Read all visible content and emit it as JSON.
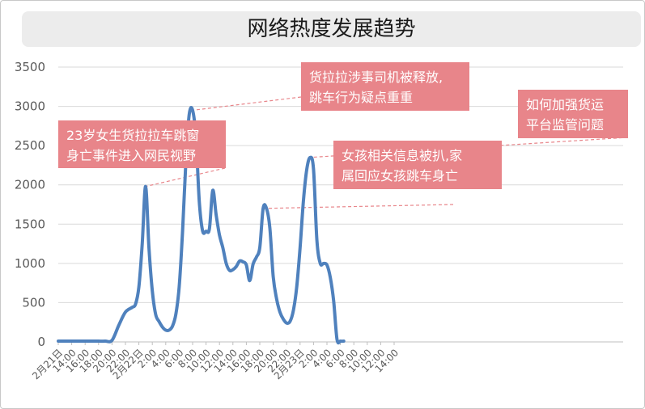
{
  "chart_data": {
    "type": "line",
    "title": "网络热度发展趋势",
    "ylim": [
      0,
      3500
    ],
    "y_ticks": [
      "0",
      "500",
      "1000",
      "1500",
      "2000",
      "2500",
      "3000",
      "3500"
    ],
    "x_ticks": [
      "2月21日",
      "14:00",
      "16:00",
      "18:00",
      "20:00",
      "22:00",
      "2月22日",
      "2:00",
      "4:00",
      "6:00",
      "8:00",
      "10:00",
      "12:00",
      "14:00",
      "16:00",
      "18:00",
      "20:00",
      "22:00",
      "2月23日",
      "2:00",
      "4:00",
      "6:00",
      "8:00",
      "10:00",
      "12:00",
      "14:00"
    ],
    "grid": "horizontal",
    "line_color": "#4f81bd",
    "series": [
      {
        "points": [
          [
            0,
            10
          ],
          [
            1,
            10
          ],
          [
            2,
            10
          ],
          [
            3,
            10
          ],
          [
            4,
            10
          ],
          [
            5,
            10
          ],
          [
            6,
            10
          ],
          [
            7,
            10
          ],
          [
            8,
            20
          ],
          [
            9,
            210
          ],
          [
            10,
            380
          ],
          [
            11,
            440
          ],
          [
            11.5,
            480
          ],
          [
            12,
            700
          ],
          [
            12.5,
            1250
          ],
          [
            13,
            1980
          ],
          [
            13.5,
            1200
          ],
          [
            14,
            650
          ],
          [
            14.5,
            350
          ],
          [
            15,
            260
          ],
          [
            15.5,
            190
          ],
          [
            16,
            150
          ],
          [
            16.5,
            150
          ],
          [
            17,
            200
          ],
          [
            17.5,
            350
          ],
          [
            18,
            700
          ],
          [
            18.5,
            1400
          ],
          [
            19,
            2300
          ],
          [
            19.5,
            2900
          ],
          [
            20,
            2950
          ],
          [
            20.5,
            2600
          ],
          [
            21,
            1780
          ],
          [
            21.5,
            1410
          ],
          [
            22,
            1410
          ],
          [
            22.5,
            1440
          ],
          [
            23,
            1930
          ],
          [
            23.5,
            1620
          ],
          [
            24,
            1360
          ],
          [
            24.5,
            1200
          ],
          [
            25,
            1000
          ],
          [
            25.5,
            910
          ],
          [
            26,
            920
          ],
          [
            26.5,
            960
          ],
          [
            27,
            1030
          ],
          [
            27.5,
            1020
          ],
          [
            28,
            980
          ],
          [
            28.5,
            780
          ],
          [
            29,
            990
          ],
          [
            29.5,
            1080
          ],
          [
            30,
            1200
          ],
          [
            30.5,
            1700
          ],
          [
            31,
            1700
          ],
          [
            31.5,
            1450
          ],
          [
            32,
            830
          ],
          [
            32.5,
            550
          ],
          [
            33,
            380
          ],
          [
            33.5,
            290
          ],
          [
            34,
            240
          ],
          [
            34.5,
            260
          ],
          [
            35,
            400
          ],
          [
            35.5,
            700
          ],
          [
            36,
            1200
          ],
          [
            36.5,
            1800
          ],
          [
            37,
            2200
          ],
          [
            37.5,
            2350
          ],
          [
            38,
            2200
          ],
          [
            38.5,
            1300
          ],
          [
            39,
            1000
          ],
          [
            39.5,
            1000
          ],
          [
            40,
            980
          ],
          [
            40.5,
            820
          ],
          [
            41,
            520
          ],
          [
            41.5,
            30
          ],
          [
            42,
            10
          ],
          [
            42.5,
            10
          ]
        ]
      }
    ],
    "annotations": [
      {
        "lines": [
          "23岁女生货拉拉车跳窗",
          "身亡事件进入网民视野"
        ],
        "x": 13
      },
      {
        "lines": [
          "货拉拉涉事司机被释放,",
          "跳车行为疑点重重"
        ],
        "x": 20
      },
      {
        "lines": [
          "女孩相关信息被扒,家",
          "属回应女孩跳车身亡"
        ],
        "x": 30.5
      },
      {
        "lines": [
          "如何加强货运",
          "平台监管问题"
        ],
        "x": 38
      }
    ]
  }
}
